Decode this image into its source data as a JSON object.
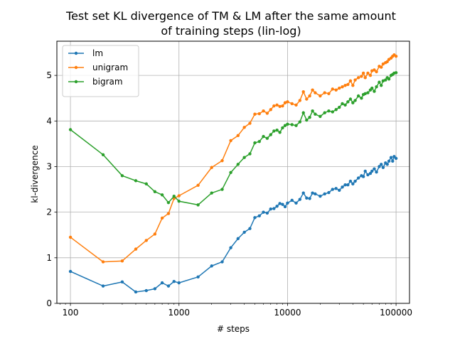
{
  "chart_data": {
    "type": "line",
    "title": [
      "Test set KL divergence of TM & LM after the same amount",
      "of training steps (lin-log)"
    ],
    "xlabel": "# steps",
    "ylabel": "kl-divergence",
    "xscale": "log",
    "xlim": [
      75,
      133000
    ],
    "ylim": [
      0,
      5.75
    ],
    "xticks": [
      {
        "value": 100,
        "label": "100"
      },
      {
        "value": 1000,
        "label": "1000"
      },
      {
        "value": 10000,
        "label": "10000"
      },
      {
        "value": 100000,
        "label": "100000"
      }
    ],
    "yticks": [
      {
        "value": 0,
        "label": "0"
      },
      {
        "value": 1,
        "label": "1"
      },
      {
        "value": 2,
        "label": "2"
      },
      {
        "value": 3,
        "label": "3"
      },
      {
        "value": 4,
        "label": "4"
      },
      {
        "value": 5,
        "label": "5"
      }
    ],
    "grid": true,
    "legend_position": "top-left",
    "series": [
      {
        "name": "lm",
        "color": "#1f77b4",
        "points": [
          [
            100,
            0.7
          ],
          [
            200,
            0.38
          ],
          [
            300,
            0.47
          ],
          [
            400,
            0.25
          ],
          [
            500,
            0.28
          ],
          [
            600,
            0.32
          ],
          [
            700,
            0.45
          ],
          [
            800,
            0.38
          ],
          [
            900,
            0.48
          ],
          [
            1000,
            0.45
          ],
          [
            1500,
            0.58
          ],
          [
            2000,
            0.82
          ],
          [
            2500,
            0.91
          ],
          [
            3000,
            1.22
          ],
          [
            3500,
            1.42
          ],
          [
            4000,
            1.56
          ],
          [
            4500,
            1.64
          ],
          [
            5000,
            1.88
          ],
          [
            5500,
            1.92
          ],
          [
            6000,
            2.0
          ],
          [
            6500,
            1.98
          ],
          [
            7000,
            2.07
          ],
          [
            7500,
            2.08
          ],
          [
            8000,
            2.13
          ],
          [
            8500,
            2.19
          ],
          [
            9000,
            2.17
          ],
          [
            9500,
            2.12
          ],
          [
            10000,
            2.2
          ],
          [
            11000,
            2.26
          ],
          [
            12000,
            2.2
          ],
          [
            13000,
            2.28
          ],
          [
            14000,
            2.42
          ],
          [
            15000,
            2.31
          ],
          [
            16000,
            2.3
          ],
          [
            17000,
            2.42
          ],
          [
            18000,
            2.4
          ],
          [
            20000,
            2.35
          ],
          [
            22000,
            2.4
          ],
          [
            24000,
            2.43
          ],
          [
            26000,
            2.5
          ],
          [
            28000,
            2.52
          ],
          [
            30000,
            2.48
          ],
          [
            32000,
            2.55
          ],
          [
            34000,
            2.6
          ],
          [
            36000,
            2.6
          ],
          [
            38000,
            2.68
          ],
          [
            40000,
            2.62
          ],
          [
            42000,
            2.68
          ],
          [
            45000,
            2.75
          ],
          [
            48000,
            2.8
          ],
          [
            50000,
            2.78
          ],
          [
            52000,
            2.9
          ],
          [
            55000,
            2.82
          ],
          [
            58000,
            2.85
          ],
          [
            60000,
            2.9
          ],
          [
            63000,
            2.95
          ],
          [
            66000,
            2.88
          ],
          [
            70000,
            3.0
          ],
          [
            73000,
            3.05
          ],
          [
            76000,
            2.98
          ],
          [
            80000,
            3.08
          ],
          [
            83000,
            3.05
          ],
          [
            86000,
            3.12
          ],
          [
            90000,
            3.2
          ],
          [
            93000,
            3.12
          ],
          [
            96000,
            3.22
          ],
          [
            100000,
            3.18
          ]
        ]
      },
      {
        "name": "unigram",
        "color": "#ff7f0e",
        "points": [
          [
            100,
            1.45
          ],
          [
            200,
            0.91
          ],
          [
            300,
            0.93
          ],
          [
            400,
            1.19
          ],
          [
            500,
            1.38
          ],
          [
            600,
            1.52
          ],
          [
            700,
            1.87
          ],
          [
            800,
            1.97
          ],
          [
            900,
            2.3
          ],
          [
            1000,
            2.36
          ],
          [
            1500,
            2.59
          ],
          [
            2000,
            2.98
          ],
          [
            2500,
            3.13
          ],
          [
            3000,
            3.57
          ],
          [
            3500,
            3.68
          ],
          [
            4000,
            3.86
          ],
          [
            4500,
            3.95
          ],
          [
            5000,
            4.15
          ],
          [
            5500,
            4.16
          ],
          [
            6000,
            4.22
          ],
          [
            6500,
            4.17
          ],
          [
            7000,
            4.25
          ],
          [
            7500,
            4.33
          ],
          [
            8000,
            4.35
          ],
          [
            8500,
            4.32
          ],
          [
            9000,
            4.33
          ],
          [
            9500,
            4.4
          ],
          [
            10000,
            4.42
          ],
          [
            11000,
            4.38
          ],
          [
            12000,
            4.35
          ],
          [
            13000,
            4.45
          ],
          [
            14000,
            4.64
          ],
          [
            15000,
            4.48
          ],
          [
            16000,
            4.55
          ],
          [
            17000,
            4.68
          ],
          [
            18000,
            4.62
          ],
          [
            20000,
            4.55
          ],
          [
            22000,
            4.62
          ],
          [
            24000,
            4.6
          ],
          [
            26000,
            4.7
          ],
          [
            28000,
            4.68
          ],
          [
            30000,
            4.72
          ],
          [
            32000,
            4.75
          ],
          [
            34000,
            4.78
          ],
          [
            36000,
            4.8
          ],
          [
            38000,
            4.88
          ],
          [
            40000,
            4.78
          ],
          [
            42000,
            4.9
          ],
          [
            45000,
            4.95
          ],
          [
            48000,
            4.98
          ],
          [
            50000,
            5.05
          ],
          [
            52000,
            4.95
          ],
          [
            55000,
            5.05
          ],
          [
            58000,
            5.0
          ],
          [
            60000,
            5.1
          ],
          [
            63000,
            5.12
          ],
          [
            66000,
            5.08
          ],
          [
            70000,
            5.2
          ],
          [
            73000,
            5.18
          ],
          [
            76000,
            5.25
          ],
          [
            80000,
            5.28
          ],
          [
            83000,
            5.3
          ],
          [
            86000,
            5.35
          ],
          [
            90000,
            5.38
          ],
          [
            93000,
            5.42
          ],
          [
            96000,
            5.45
          ],
          [
            100000,
            5.42
          ]
        ]
      },
      {
        "name": "bigram",
        "color": "#2ca02c",
        "points": [
          [
            100,
            3.81
          ],
          [
            200,
            3.26
          ],
          [
            300,
            2.8
          ],
          [
            400,
            2.69
          ],
          [
            500,
            2.62
          ],
          [
            600,
            2.45
          ],
          [
            700,
            2.38
          ],
          [
            800,
            2.21
          ],
          [
            900,
            2.35
          ],
          [
            1000,
            2.24
          ],
          [
            1500,
            2.16
          ],
          [
            2000,
            2.42
          ],
          [
            2500,
            2.5
          ],
          [
            3000,
            2.87
          ],
          [
            3500,
            3.05
          ],
          [
            4000,
            3.2
          ],
          [
            4500,
            3.28
          ],
          [
            5000,
            3.52
          ],
          [
            5500,
            3.55
          ],
          [
            6000,
            3.66
          ],
          [
            6500,
            3.62
          ],
          [
            7000,
            3.7
          ],
          [
            7500,
            3.78
          ],
          [
            8000,
            3.8
          ],
          [
            8500,
            3.75
          ],
          [
            9000,
            3.85
          ],
          [
            9500,
            3.9
          ],
          [
            10000,
            3.93
          ],
          [
            11000,
            3.92
          ],
          [
            12000,
            3.9
          ],
          [
            13000,
            3.98
          ],
          [
            14000,
            4.18
          ],
          [
            15000,
            4.02
          ],
          [
            16000,
            4.08
          ],
          [
            17000,
            4.22
          ],
          [
            18000,
            4.15
          ],
          [
            20000,
            4.1
          ],
          [
            22000,
            4.18
          ],
          [
            24000,
            4.22
          ],
          [
            26000,
            4.2
          ],
          [
            28000,
            4.25
          ],
          [
            30000,
            4.3
          ],
          [
            32000,
            4.38
          ],
          [
            34000,
            4.35
          ],
          [
            36000,
            4.42
          ],
          [
            38000,
            4.48
          ],
          [
            40000,
            4.4
          ],
          [
            42000,
            4.45
          ],
          [
            45000,
            4.55
          ],
          [
            48000,
            4.5
          ],
          [
            50000,
            4.58
          ],
          [
            52000,
            4.6
          ],
          [
            55000,
            4.62
          ],
          [
            58000,
            4.68
          ],
          [
            60000,
            4.72
          ],
          [
            63000,
            4.65
          ],
          [
            66000,
            4.75
          ],
          [
            70000,
            4.85
          ],
          [
            73000,
            4.78
          ],
          [
            76000,
            4.88
          ],
          [
            80000,
            4.9
          ],
          [
            83000,
            4.95
          ],
          [
            86000,
            4.92
          ],
          [
            90000,
            5.0
          ],
          [
            93000,
            5.02
          ],
          [
            96000,
            5.05
          ],
          [
            100000,
            5.06
          ]
        ]
      }
    ]
  }
}
